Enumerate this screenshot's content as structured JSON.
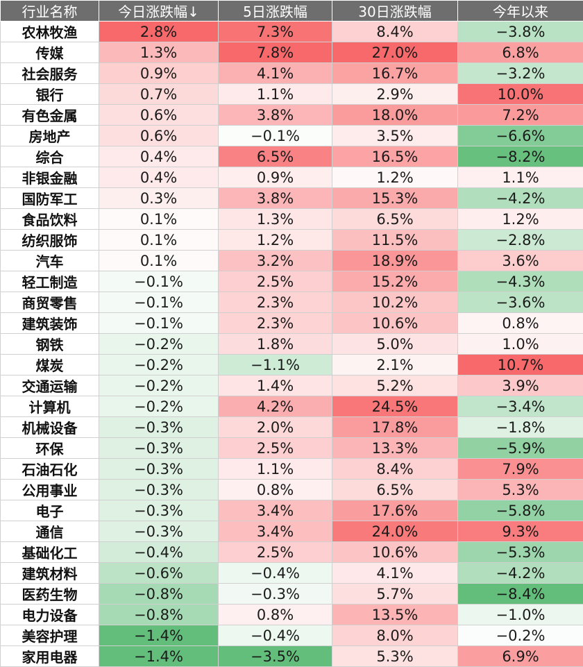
{
  "chart_data": {
    "type": "table",
    "columns": [
      "行业名称",
      "今日涨跌幅↓",
      "5日涨跌幅",
      "30日涨跌幅",
      "今年以来"
    ],
    "colors": {
      "header_bg": "#6e6e6e",
      "header_text": "#ffffff",
      "positive": "#f8696b",
      "negative": "#63be7b",
      "neutral": "#ffffff"
    },
    "rows": [
      {
        "name": "农林牧渔",
        "values": [
          "2.8%",
          "7.3%",
          "8.4%",
          "−3.8%"
        ]
      },
      {
        "name": "传媒",
        "values": [
          "1.3%",
          "7.8%",
          "27.0%",
          "6.8%"
        ]
      },
      {
        "name": "社会服务",
        "values": [
          "0.9%",
          "4.1%",
          "16.7%",
          "−3.2%"
        ]
      },
      {
        "name": "银行",
        "values": [
          "0.7%",
          "1.1%",
          "2.9%",
          "10.0%"
        ]
      },
      {
        "name": "有色金属",
        "values": [
          "0.6%",
          "3.8%",
          "18.0%",
          "7.2%"
        ]
      },
      {
        "name": "房地产",
        "values": [
          "0.6%",
          "−0.1%",
          "3.5%",
          "−6.6%"
        ]
      },
      {
        "name": "综合",
        "values": [
          "0.4%",
          "6.5%",
          "16.5%",
          "−8.2%"
        ]
      },
      {
        "name": "非银金融",
        "values": [
          "0.4%",
          "0.9%",
          "1.2%",
          "1.1%"
        ]
      },
      {
        "name": "国防军工",
        "values": [
          "0.3%",
          "3.8%",
          "15.3%",
          "−4.2%"
        ]
      },
      {
        "name": "食品饮料",
        "values": [
          "0.1%",
          "1.3%",
          "6.5%",
          "1.2%"
        ]
      },
      {
        "name": "纺织服饰",
        "values": [
          "0.1%",
          "1.2%",
          "11.5%",
          "−2.8%"
        ]
      },
      {
        "name": "汽车",
        "values": [
          "0.1%",
          "3.2%",
          "18.9%",
          "3.6%"
        ]
      },
      {
        "name": "轻工制造",
        "values": [
          "−0.1%",
          "2.5%",
          "15.2%",
          "−4.3%"
        ]
      },
      {
        "name": "商贸零售",
        "values": [
          "−0.1%",
          "2.3%",
          "10.2%",
          "−3.6%"
        ]
      },
      {
        "name": "建筑装饰",
        "values": [
          "−0.1%",
          "2.3%",
          "10.6%",
          "0.8%"
        ]
      },
      {
        "name": "钢铁",
        "values": [
          "−0.2%",
          "1.8%",
          "5.0%",
          "1.0%"
        ]
      },
      {
        "name": "煤炭",
        "values": [
          "−0.2%",
          "−1.1%",
          "2.1%",
          "10.7%"
        ]
      },
      {
        "name": "交通运输",
        "values": [
          "−0.2%",
          "1.4%",
          "5.2%",
          "3.9%"
        ]
      },
      {
        "name": "计算机",
        "values": [
          "−0.2%",
          "4.2%",
          "24.5%",
          "−3.4%"
        ]
      },
      {
        "name": "机械设备",
        "values": [
          "−0.3%",
          "2.0%",
          "17.8%",
          "−1.8%"
        ]
      },
      {
        "name": "环保",
        "values": [
          "−0.3%",
          "2.5%",
          "13.3%",
          "−5.9%"
        ]
      },
      {
        "name": "石油石化",
        "values": [
          "−0.3%",
          "1.1%",
          "8.4%",
          "7.9%"
        ]
      },
      {
        "name": "公用事业",
        "values": [
          "−0.3%",
          "0.8%",
          "6.5%",
          "5.3%"
        ]
      },
      {
        "name": "电子",
        "values": [
          "−0.3%",
          "3.4%",
          "17.6%",
          "−5.8%"
        ]
      },
      {
        "name": "通信",
        "values": [
          "−0.3%",
          "3.4%",
          "24.0%",
          "9.3%"
        ]
      },
      {
        "name": "基础化工",
        "values": [
          "−0.4%",
          "2.5%",
          "10.6%",
          "−5.3%"
        ]
      },
      {
        "name": "建筑材料",
        "values": [
          "−0.6%",
          "−0.4%",
          "4.1%",
          "−4.2%"
        ]
      },
      {
        "name": "医药生物",
        "values": [
          "−0.8%",
          "−0.3%",
          "5.7%",
          "−8.4%"
        ]
      },
      {
        "name": "电力设备",
        "values": [
          "−0.8%",
          "0.8%",
          "13.5%",
          "−1.0%"
        ]
      },
      {
        "name": "美容护理",
        "values": [
          "−1.4%",
          "−0.4%",
          "8.0%",
          "−0.2%"
        ]
      },
      {
        "name": "家用电器",
        "values": [
          "−1.4%",
          "−3.5%",
          "5.3%",
          "6.9%"
        ]
      }
    ]
  }
}
